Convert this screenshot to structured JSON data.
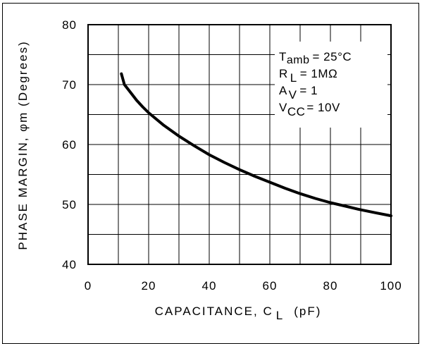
{
  "chart_data": {
    "type": "line",
    "title": "",
    "xlabel_main": "CAPACITANCE, C",
    "xlabel_sub": "L",
    "xlabel_unit": "(pF)",
    "ylabel": "PHASE MARGIN,  φm (Degrees)",
    "xlim": [
      0,
      100
    ],
    "ylim": [
      40,
      80
    ],
    "x_ticks": [
      0,
      20,
      40,
      60,
      80,
      100
    ],
    "y_ticks": [
      40,
      50,
      60,
      70,
      80
    ],
    "x_tick_labels": [
      "0",
      "20",
      "40",
      "60",
      "80",
      "100"
    ],
    "y_tick_labels": [
      "40",
      "50",
      "60",
      "70",
      "80"
    ],
    "grid": true,
    "x_grid_step": 10,
    "y_grid_step": 5,
    "series": [
      {
        "x": [
          11,
          12,
          14,
          16,
          18,
          20,
          25,
          30,
          35,
          40,
          45,
          50,
          55,
          60,
          65,
          70,
          75,
          80,
          85,
          90,
          95,
          100
        ],
        "y": [
          71.8,
          70.0,
          68.7,
          67.4,
          66.3,
          65.3,
          63.2,
          61.4,
          59.8,
          58.3,
          57.0,
          55.8,
          54.7,
          53.7,
          52.7,
          51.8,
          51.0,
          50.3,
          49.7,
          49.1,
          48.6,
          48.1
        ],
        "color": "#000000"
      }
    ],
    "annotations": {
      "line1_main": "T",
      "line1_sub": "amb",
      "line1_rest": "= 25°C",
      "line2_main": "R",
      "line2_sub": "L",
      "line2_rest": "=  1MΩ",
      "line3_main": "A",
      "line3_sub": "V",
      "line3_rest": "= 1",
      "line4_main": "V",
      "line4_sub": "CC",
      "line4_rest": "= 10V"
    }
  }
}
